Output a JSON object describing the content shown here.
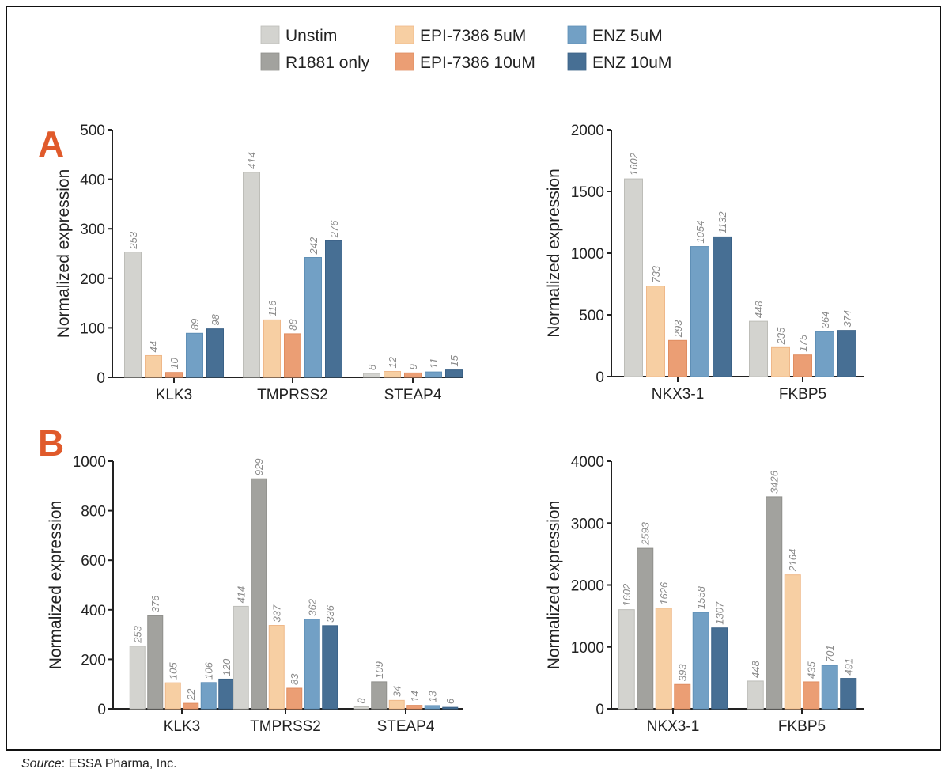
{
  "source": {
    "prefix": "Source",
    "text": ": ESSA Pharma, Inc."
  },
  "legend": [
    {
      "name": "Unstim",
      "color": "#d3d3cf",
      "stroke": "#bdbdb8"
    },
    {
      "name": "R1881 only",
      "color": "#a2a29e",
      "stroke": "#8f8f8b"
    },
    {
      "name": "EPI-7386 5uM",
      "color": "#f7cfa3",
      "stroke": "#efb889"
    },
    {
      "name": "EPI-7386 10uM",
      "color": "#eb9e74",
      "stroke": "#e08d61"
    },
    {
      "name": "ENZ 5uM",
      "color": "#72a0c5",
      "stroke": "#5f8fb6"
    },
    {
      "name": "ENZ 10uM",
      "color": "#476f94",
      "stroke": "#3a6186"
    }
  ],
  "panels": [
    {
      "letter": "A"
    },
    {
      "letter": "B"
    }
  ],
  "chart_data": [
    {
      "type": "bar",
      "panel": "A",
      "title": "",
      "xlabel": "",
      "ylabel": "Normalized expression",
      "ylim": [
        0,
        500
      ],
      "yticks": [
        0,
        100,
        200,
        300,
        400,
        500
      ],
      "grid": false,
      "legend_position": "top-center",
      "categories": [
        "KLK3",
        "TMPRSS2",
        "STEAP4"
      ],
      "series": [
        {
          "name": "Unstim",
          "values": [
            253,
            414,
            8
          ]
        },
        {
          "name": "EPI-7386 5uM",
          "values": [
            44,
            116,
            12
          ]
        },
        {
          "name": "EPI-7386 10uM",
          "values": [
            10,
            88,
            9
          ]
        },
        {
          "name": "ENZ 5uM",
          "values": [
            89,
            242,
            11
          ]
        },
        {
          "name": "ENZ 10uM",
          "values": [
            98,
            276,
            15
          ]
        }
      ]
    },
    {
      "type": "bar",
      "panel": "A",
      "title": "",
      "xlabel": "",
      "ylabel": "Normalized expression",
      "ylim": [
        0,
        2000
      ],
      "yticks": [
        0,
        500,
        1000,
        1500,
        2000
      ],
      "grid": false,
      "categories": [
        "NKX3-1",
        "FKBP5"
      ],
      "series": [
        {
          "name": "Unstim",
          "values": [
            1602,
            448
          ]
        },
        {
          "name": "EPI-7386 5uM",
          "values": [
            733,
            235
          ]
        },
        {
          "name": "EPI-7386 10uM",
          "values": [
            293,
            175
          ]
        },
        {
          "name": "ENZ 5uM",
          "values": [
            1054,
            364
          ]
        },
        {
          "name": "ENZ 10uM",
          "values": [
            1132,
            374
          ]
        }
      ]
    },
    {
      "type": "bar",
      "panel": "B",
      "title": "",
      "xlabel": "",
      "ylabel": "Normalized expression",
      "ylim": [
        0,
        1000
      ],
      "yticks": [
        0,
        200,
        400,
        600,
        800,
        1000
      ],
      "grid": false,
      "categories": [
        "KLK3",
        "TMPRSS2",
        "STEAP4"
      ],
      "series": [
        {
          "name": "Unstim",
          "values": [
            253,
            414,
            8
          ]
        },
        {
          "name": "R1881 only",
          "values": [
            376,
            929,
            109
          ]
        },
        {
          "name": "EPI-7386 5uM",
          "values": [
            105,
            337,
            34
          ]
        },
        {
          "name": "EPI-7386 10uM",
          "values": [
            22,
            83,
            14
          ]
        },
        {
          "name": "ENZ 5uM",
          "values": [
            106,
            362,
            13
          ]
        },
        {
          "name": "ENZ 10uM",
          "values": [
            120,
            336,
            6
          ]
        }
      ]
    },
    {
      "type": "bar",
      "panel": "B",
      "title": "",
      "xlabel": "",
      "ylabel": "Normalized expression",
      "ylim": [
        0,
        4000
      ],
      "yticks": [
        0,
        1000,
        2000,
        3000,
        4000
      ],
      "grid": false,
      "categories": [
        "NKX3-1",
        "FKBP5"
      ],
      "series": [
        {
          "name": "Unstim",
          "values": [
            1602,
            448
          ]
        },
        {
          "name": "R1881 only",
          "values": [
            2593,
            3426
          ]
        },
        {
          "name": "EPI-7386 5uM",
          "values": [
            1626,
            2164
          ]
        },
        {
          "name": "EPI-7386 10uM",
          "values": [
            393,
            435
          ]
        },
        {
          "name": "ENZ 5uM",
          "values": [
            1558,
            701
          ]
        },
        {
          "name": "ENZ 10uM",
          "values": [
            1307,
            491
          ]
        }
      ]
    }
  ]
}
